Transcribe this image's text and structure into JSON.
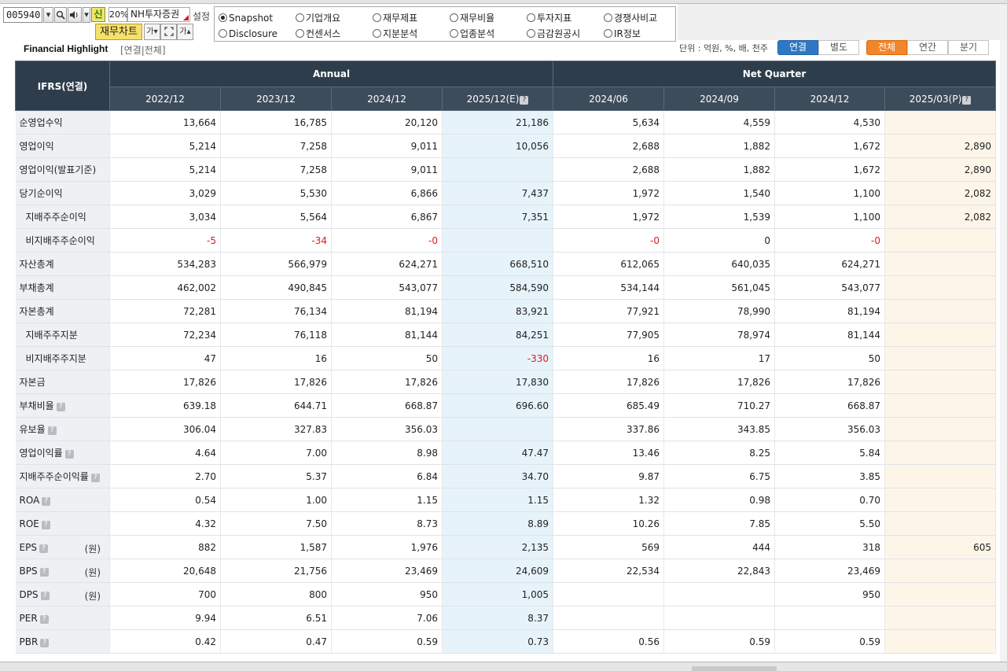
{
  "toolbar": {
    "stock_code": "005940",
    "sin_label": "신",
    "zoom": "20%",
    "company_name": "NH투자증권",
    "setting_label": "설정",
    "chart_button": "재무차트",
    "font_btn": "가"
  },
  "menu_radios": [
    {
      "label": "Snapshot",
      "selected": true
    },
    {
      "label": "기업개요",
      "selected": false
    },
    {
      "label": "재무제표",
      "selected": false
    },
    {
      "label": "재무비율",
      "selected": false
    },
    {
      "label": "투자지표",
      "selected": false
    },
    {
      "label": "경쟁사비교",
      "selected": false
    },
    {
      "label": "Disclosure",
      "selected": false
    },
    {
      "label": "컨센서스",
      "selected": false
    },
    {
      "label": "지분분석",
      "selected": false
    },
    {
      "label": "업종분석",
      "selected": false
    },
    {
      "label": "금감원공시",
      "selected": false
    },
    {
      "label": "IR정보",
      "selected": false
    }
  ],
  "highlight": {
    "title": "Financial Highlight",
    "subtitle": "[연결|전체]",
    "unit": "단위 : 억원, %, 배, 천주",
    "toggle1": [
      "연결",
      "별도"
    ],
    "toggle2": [
      "전체",
      "연간",
      "분기"
    ]
  },
  "table": {
    "corner": "IFRS(연결)",
    "group_annual": "Annual",
    "group_quarter": "Net Quarter",
    "columns": [
      "2022/12",
      "2023/12",
      "2024/12",
      "2025/12(E)",
      "2024/06",
      "2024/09",
      "2024/12",
      "2025/03(P)"
    ],
    "rows": [
      {
        "label": "순영업수익",
        "values": [
          "13,664",
          "16,785",
          "20,120",
          "21,186",
          "5,634",
          "4,559",
          "4,530",
          ""
        ]
      },
      {
        "label": "영업이익",
        "values": [
          "5,214",
          "7,258",
          "9,011",
          "10,056",
          "2,688",
          "1,882",
          "1,672",
          "2,890"
        ]
      },
      {
        "label": "영업이익(발표기준)",
        "values": [
          "5,214",
          "7,258",
          "9,011",
          "",
          "2,688",
          "1,882",
          "1,672",
          "2,890"
        ]
      },
      {
        "label": "당기순이익",
        "values": [
          "3,029",
          "5,530",
          "6,866",
          "7,437",
          "1,972",
          "1,540",
          "1,100",
          "2,082"
        ]
      },
      {
        "label": "지배주주순이익",
        "indent": true,
        "values": [
          "3,034",
          "5,564",
          "6,867",
          "7,351",
          "1,972",
          "1,539",
          "1,100",
          "2,082"
        ]
      },
      {
        "label": "비지배주주순이익",
        "indent": true,
        "values": [
          "-5",
          "-34",
          "-0",
          "",
          "-0",
          "0",
          "-0",
          ""
        ]
      },
      {
        "label": "자산총계",
        "values": [
          "534,283",
          "566,979",
          "624,271",
          "668,510",
          "612,065",
          "640,035",
          "624,271",
          ""
        ]
      },
      {
        "label": "부채총계",
        "values": [
          "462,002",
          "490,845",
          "543,077",
          "584,590",
          "534,144",
          "561,045",
          "543,077",
          ""
        ]
      },
      {
        "label": "자본총계",
        "values": [
          "72,281",
          "76,134",
          "81,194",
          "83,921",
          "77,921",
          "78,990",
          "81,194",
          ""
        ]
      },
      {
        "label": "지배주주지분",
        "indent": true,
        "values": [
          "72,234",
          "76,118",
          "81,144",
          "84,251",
          "77,905",
          "78,974",
          "81,144",
          ""
        ]
      },
      {
        "label": "비지배주주지분",
        "indent": true,
        "values": [
          "47",
          "16",
          "50",
          "-330",
          "16",
          "17",
          "50",
          ""
        ]
      },
      {
        "label": "자본금",
        "values": [
          "17,826",
          "17,826",
          "17,826",
          "17,830",
          "17,826",
          "17,826",
          "17,826",
          ""
        ]
      },
      {
        "label": "부채비율",
        "help": true,
        "values": [
          "639.18",
          "644.71",
          "668.87",
          "696.60",
          "685.49",
          "710.27",
          "668.87",
          ""
        ]
      },
      {
        "label": "유보율",
        "help": true,
        "values": [
          "306.04",
          "327.83",
          "356.03",
          "",
          "337.86",
          "343.85",
          "356.03",
          ""
        ]
      },
      {
        "label": "영업이익률",
        "help": true,
        "values": [
          "4.64",
          "7.00",
          "8.98",
          "47.47",
          "13.46",
          "8.25",
          "5.84",
          ""
        ]
      },
      {
        "label": "지배주주순이익률",
        "help": true,
        "values": [
          "2.70",
          "5.37",
          "6.84",
          "34.70",
          "9.87",
          "6.75",
          "3.85",
          ""
        ]
      },
      {
        "label": "ROA",
        "help": true,
        "values": [
          "0.54",
          "1.00",
          "1.15",
          "1.15",
          "1.32",
          "0.98",
          "0.70",
          ""
        ]
      },
      {
        "label": "ROE",
        "help": true,
        "values": [
          "4.32",
          "7.50",
          "8.73",
          "8.89",
          "10.26",
          "7.85",
          "5.50",
          ""
        ]
      },
      {
        "label": "EPS",
        "help": true,
        "unit": "(원)",
        "values": [
          "882",
          "1,587",
          "1,976",
          "2,135",
          "569",
          "444",
          "318",
          "605"
        ]
      },
      {
        "label": "BPS",
        "help": true,
        "unit": "(원)",
        "values": [
          "20,648",
          "21,756",
          "23,469",
          "24,609",
          "22,534",
          "22,843",
          "23,469",
          ""
        ]
      },
      {
        "label": "DPS",
        "help": true,
        "unit": "(원)",
        "values": [
          "700",
          "800",
          "950",
          "1,005",
          "",
          "",
          "950",
          ""
        ]
      },
      {
        "label": "PER",
        "help": true,
        "values": [
          "9.94",
          "6.51",
          "7.06",
          "8.37",
          "",
          "",
          "",
          ""
        ]
      },
      {
        "label": "PBR",
        "help": true,
        "values": [
          "0.42",
          "0.47",
          "0.59",
          "0.73",
          "0.56",
          "0.59",
          "0.59",
          ""
        ]
      }
    ]
  },
  "colors": {
    "header_bg": "#2e3d4c",
    "estimate_col": "#e7f3fa",
    "preliminary_col": "#fdf6e8",
    "negative": "#e0181b",
    "toggle_blue": "#2d78c4",
    "toggle_orange": "#f3852a"
  }
}
